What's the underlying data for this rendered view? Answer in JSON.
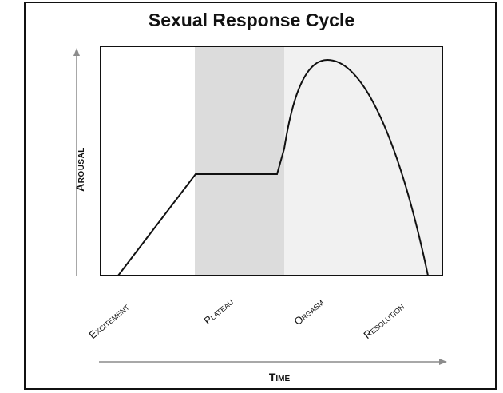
{
  "diagram": {
    "title": "Sexual Response Cycle",
    "y_axis_label": "Arousal",
    "x_axis_label": "Time",
    "phases": [
      {
        "label": "Excitement",
        "shaded": false
      },
      {
        "label": "Plateau",
        "shaded": true
      },
      {
        "label": "Orgasm",
        "shaded": "light"
      },
      {
        "label": "Resolution",
        "shaded": false
      }
    ],
    "colors": {
      "plateau_shade": "#dcdcdc",
      "orgasm_shade": "#f1f1f1",
      "curve": "#111111",
      "axis_arrows": "#8c8c8c"
    }
  }
}
